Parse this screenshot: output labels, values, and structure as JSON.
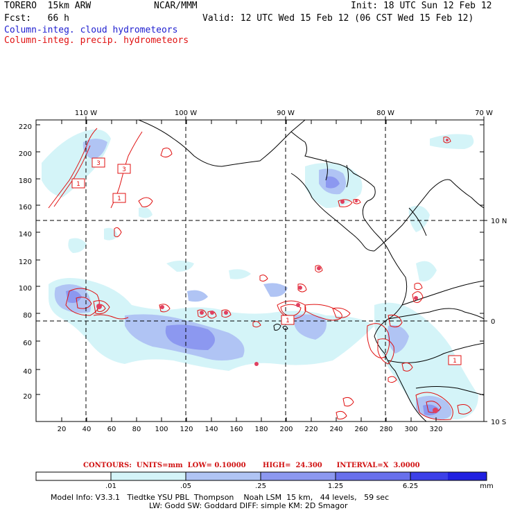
{
  "header": {
    "model": "TORERO  15km ARW",
    "center": "NCAR/MMM",
    "init": "Init: 18 UTC Sun 12 Feb 12",
    "fcst": "Fcst:   66 h",
    "valid": "Valid: 12 UTC Wed 15 Feb 12 (06 CST Wed 15 Feb 12)",
    "field1": "Column-integ. cloud hydrometeors",
    "field2": "Column-integ. precip. hydrometeors"
  },
  "axes": {
    "x_ticks": [
      "20",
      "40",
      "60",
      "80",
      "100",
      "120",
      "140",
      "160",
      "180",
      "200",
      "220",
      "240",
      "260",
      "280",
      "300",
      "320"
    ],
    "y_ticks": [
      "20",
      "40",
      "60",
      "80",
      "100",
      "120",
      "140",
      "160",
      "180",
      "200",
      "220"
    ],
    "lon_labels": [
      "110 W",
      "100 W",
      "90 W",
      "80 W",
      "70 W"
    ],
    "lat_labels": [
      "10 N",
      "0",
      "10 S"
    ]
  },
  "contour_labels": [
    "1",
    "3",
    "3",
    "1",
    "1",
    "1"
  ],
  "contours_info": {
    "text": "CONTOURS:  UNITS=mm  LOW= 0.10000       HIGH=  24.300      INTERVAL=X  3.0000"
  },
  "colorbar": {
    "labels": [
      ".01",
      ".05",
      ".25",
      "1.25",
      "6.25"
    ],
    "unit": "mm",
    "colors": [
      "#ffffff",
      "#d4f4f8",
      "#b0c4f4",
      "#8c98f0",
      "#6870ec",
      "#3c40e8",
      "#2020e0"
    ]
  },
  "footer": {
    "line1": "Model Info: V3.3.1   Tiedtke YSU PBL  Thompson    Noah LSM  15 km,   44 levels,   59 sec",
    "line2": "LW: Godd SW: Goddard DIFF: simple KM: 2D Smagor"
  }
}
